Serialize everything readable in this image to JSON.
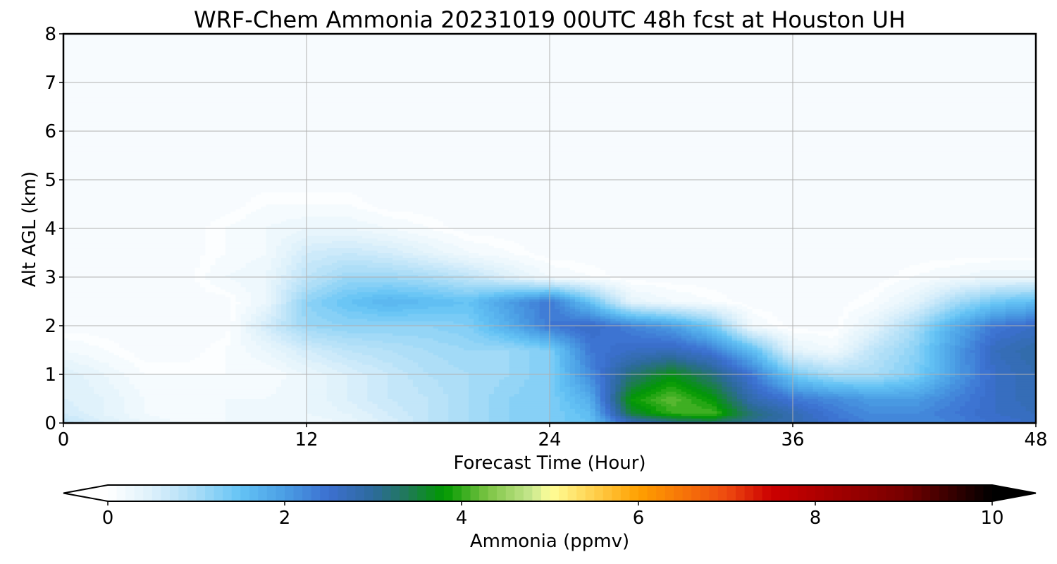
{
  "chart_data": {
    "type": "heatmap",
    "subtype": "filled-contour time-height cross section",
    "title": "WRF-Chem Ammonia  20231019 00UTC 48h fcst at Houston UH",
    "xlabel": "Forecast Time (Hour)",
    "ylabel": "Alt AGL (km)",
    "xlim": [
      0,
      48
    ],
    "ylim": [
      0,
      8
    ],
    "x_ticks": [
      0,
      12,
      24,
      36,
      48
    ],
    "y_ticks": [
      0,
      1,
      2,
      3,
      4,
      5,
      6,
      7,
      8
    ],
    "grid": true,
    "z_x": [
      0,
      2,
      4,
      6,
      8,
      10,
      12,
      14,
      16,
      18,
      20,
      22,
      24,
      26,
      28,
      30,
      32,
      34,
      36,
      38,
      40,
      42,
      44,
      46,
      48
    ],
    "z_y": [
      0,
      0.2,
      0.5,
      1,
      1.5,
      2,
      2.5,
      3,
      3.5,
      4,
      4.5,
      5,
      6,
      7,
      8
    ],
    "z_values": [
      [
        0.8,
        0.5,
        0.3,
        0.2,
        0.2,
        0.2,
        0.2,
        0.3,
        0.5,
        0.8,
        1.0,
        1.2,
        1.3,
        1.5,
        2.6,
        3.0,
        3.2,
        3.0,
        2.8,
        2.5,
        2.3,
        2.2,
        2.3,
        2.5,
        2.6
      ],
      [
        0.6,
        0.4,
        0.2,
        0.1,
        0.2,
        0.2,
        0.3,
        0.4,
        0.6,
        0.8,
        1.0,
        1.2,
        1.3,
        1.6,
        3.5,
        4.0,
        4.1,
        3.2,
        2.8,
        2.4,
        2.2,
        2.2,
        2.4,
        2.6,
        2.7
      ],
      [
        0.5,
        0.4,
        0.2,
        0.1,
        0.2,
        0.2,
        0.3,
        0.5,
        0.7,
        0.8,
        1.0,
        1.2,
        1.3,
        1.8,
        3.8,
        4.2,
        3.8,
        2.8,
        2.4,
        2.2,
        2.0,
        2.0,
        2.3,
        2.6,
        2.8
      ],
      [
        0.5,
        0.3,
        0.1,
        0.1,
        0.1,
        0.1,
        0.3,
        0.5,
        0.7,
        0.9,
        1.0,
        1.1,
        1.3,
        2.2,
        3.2,
        3.7,
        3.2,
        2.4,
        1.4,
        1.0,
        1.0,
        1.3,
        2.0,
        2.6,
        2.8
      ],
      [
        0.2,
        0.1,
        0.0,
        0.0,
        0.1,
        0.3,
        0.6,
        0.8,
        0.9,
        1.0,
        1.1,
        1.1,
        1.3,
        2.4,
        2.6,
        2.7,
        2.4,
        1.6,
        0.4,
        0.2,
        0.8,
        1.2,
        2.0,
        2.7,
        2.9
      ],
      [
        0.0,
        0.0,
        0.0,
        0.0,
        0.0,
        0.6,
        1.1,
        1.2,
        1.2,
        1.2,
        1.3,
        1.8,
        2.4,
        2.6,
        2.3,
        2.0,
        1.4,
        0.2,
        0.0,
        0.0,
        0.4,
        1.0,
        1.8,
        2.4,
        2.6
      ],
      [
        0.0,
        0.0,
        0.0,
        0.0,
        0.0,
        0.3,
        1.2,
        1.5,
        1.7,
        1.6,
        1.5,
        2.0,
        2.4,
        1.5,
        0.4,
        0.2,
        0.1,
        0.0,
        0.0,
        0.0,
        0.1,
        0.4,
        1.0,
        1.4,
        1.6
      ],
      [
        0.0,
        0.0,
        0.0,
        0.0,
        0.2,
        0.3,
        0.8,
        1.1,
        1.1,
        1.0,
        0.8,
        0.5,
        0.2,
        0.1,
        0.0,
        0.0,
        0.0,
        0.0,
        0.0,
        0.0,
        0.0,
        0.1,
        0.2,
        0.3,
        0.3
      ],
      [
        0.0,
        0.0,
        0.0,
        0.0,
        0.1,
        0.2,
        0.6,
        0.7,
        0.6,
        0.4,
        0.2,
        0.1,
        0.0,
        0.0,
        0.0,
        0.0,
        0.0,
        0.0,
        0.0,
        0.0,
        0.0,
        0.0,
        0.0,
        0.0,
        0.0
      ],
      [
        0.0,
        0.0,
        0.0,
        0.0,
        0.1,
        0.2,
        0.3,
        0.3,
        0.2,
        0.1,
        0.0,
        0.0,
        0.0,
        0.0,
        0.0,
        0.0,
        0.0,
        0.0,
        0.0,
        0.0,
        0.0,
        0.0,
        0.0,
        0.0,
        0.0
      ],
      [
        0.0,
        0.0,
        0.0,
        0.0,
        0.0,
        0.1,
        0.1,
        0.1,
        0.0,
        0.0,
        0.0,
        0.0,
        0.0,
        0.0,
        0.0,
        0.0,
        0.0,
        0.0,
        0.0,
        0.0,
        0.0,
        0.0,
        0.0,
        0.0,
        0.0
      ],
      [
        0.0,
        0.0,
        0.0,
        0.0,
        0.0,
        0.0,
        0.0,
        0.0,
        0.0,
        0.0,
        0.0,
        0.0,
        0.0,
        0.0,
        0.0,
        0.0,
        0.0,
        0.0,
        0.0,
        0.0,
        0.0,
        0.0,
        0.0,
        0.0,
        0.0
      ],
      [
        0.0,
        0.0,
        0.0,
        0.0,
        0.0,
        0.0,
        0.0,
        0.0,
        0.0,
        0.0,
        0.0,
        0.0,
        0.0,
        0.0,
        0.0,
        0.0,
        0.0,
        0.0,
        0.0,
        0.0,
        0.0,
        0.0,
        0.0,
        0.0,
        0.0
      ],
      [
        0.0,
        0.0,
        0.0,
        0.0,
        0.0,
        0.0,
        0.0,
        0.0,
        0.0,
        0.0,
        0.0,
        0.0,
        0.0,
        0.0,
        0.0,
        0.0,
        0.0,
        0.0,
        0.0,
        0.0,
        0.0,
        0.0,
        0.0,
        0.0,
        0.0
      ],
      [
        0.0,
        0.0,
        0.0,
        0.0,
        0.0,
        0.0,
        0.0,
        0.0,
        0.0,
        0.0,
        0.0,
        0.0,
        0.0,
        0.0,
        0.0,
        0.0,
        0.0,
        0.0,
        0.0,
        0.0,
        0.0,
        0.0,
        0.0,
        0.0,
        0.0
      ]
    ],
    "colorbar": {
      "label": "Ammonia  (ppmv)",
      "range": [
        0,
        10
      ],
      "ticks": [
        0,
        2,
        4,
        6,
        8,
        10
      ],
      "extend": "both",
      "levels": 100,
      "color_stops": [
        {
          "v": 0,
          "c": "#ffffff"
        },
        {
          "v": 0.5,
          "c": "#dcf0fb"
        },
        {
          "v": 1.0,
          "c": "#a9dcf7"
        },
        {
          "v": 1.5,
          "c": "#64c3f5"
        },
        {
          "v": 2.0,
          "c": "#4a9ee4"
        },
        {
          "v": 2.5,
          "c": "#3c6fd0"
        },
        {
          "v": 3.0,
          "c": "#2d6a9c"
        },
        {
          "v": 3.4,
          "c": "#1f7a55"
        },
        {
          "v": 3.8,
          "c": "#009900"
        },
        {
          "v": 4.3,
          "c": "#7cc444"
        },
        {
          "v": 4.8,
          "c": "#c9e890"
        },
        {
          "v": 5.0,
          "c": "#ffff99"
        },
        {
          "v": 6.0,
          "c": "#ffa000"
        },
        {
          "v": 7.0,
          "c": "#ee4a10"
        },
        {
          "v": 7.5,
          "c": "#cc0000"
        },
        {
          "v": 9.0,
          "c": "#770000"
        },
        {
          "v": 10.0,
          "c": "#000000"
        }
      ],
      "under_color": "#ffffff",
      "over_color": "#000000",
      "field_floor_color": "#f7fbfe"
    }
  }
}
